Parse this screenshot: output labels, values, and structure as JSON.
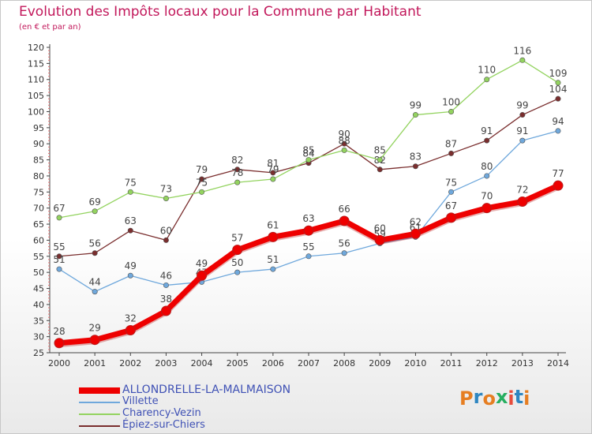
{
  "title": "Evolution des Impôts locaux pour la Commune par Habitant",
  "subtitle": "(en € et par an)",
  "logo": {
    "text": "Proxiti",
    "colors": [
      "#e67e22",
      "#2e86c1",
      "#e67e22",
      "#27ae60",
      "#e74c3c",
      "#2e86c1",
      "#e67e22"
    ]
  },
  "chart_data": {
    "type": "line",
    "x": [
      2000,
      2001,
      2002,
      2003,
      2004,
      2005,
      2006,
      2007,
      2008,
      2009,
      2010,
      2011,
      2012,
      2013,
      2014
    ],
    "ylim": [
      25,
      120
    ],
    "y_tick_step": 5,
    "grid": false,
    "legend_position": "bottom-left",
    "series": [
      {
        "name": "ALLONDRELLE-LA-MALMAISON",
        "color": "#ee0000",
        "values": [
          28,
          29,
          32,
          38,
          49,
          57,
          61,
          63,
          66,
          60,
          62,
          67,
          70,
          72,
          77
        ],
        "labels": [
          "28",
          "29",
          "32",
          "38",
          "49",
          "57",
          "61",
          "63",
          "66",
          "60",
          "62",
          "67",
          "70",
          "72",
          "77"
        ]
      },
      {
        "name": "Villette",
        "color": "#6fa8dc",
        "values": [
          51,
          44,
          49,
          46,
          47,
          50,
          51,
          55,
          56,
          59,
          61,
          75,
          80,
          91,
          94
        ],
        "labels": [
          "51",
          "44",
          "49",
          "46",
          "47",
          "50",
          "51",
          "55",
          "56",
          "59",
          "61",
          "75",
          "80",
          "91",
          "94"
        ]
      },
      {
        "name": "Charency-Vezin",
        "color": "#93d35f",
        "values": [
          67,
          69,
          75,
          73,
          75,
          78,
          79,
          85,
          88,
          85,
          99,
          100,
          110,
          116,
          109
        ],
        "labels": [
          "67",
          "69",
          "75",
          "73",
          "75",
          "78",
          "79",
          "85",
          "88",
          "85",
          "99",
          "100",
          "110",
          "116",
          "109"
        ]
      },
      {
        "name": "Épiez-sur-Chiers",
        "color": "#7a2e2e",
        "values": [
          55,
          56,
          63,
          60,
          79,
          82,
          81,
          84,
          90,
          82,
          83,
          87,
          91,
          99,
          104
        ],
        "labels": [
          "55",
          "56",
          "63",
          "60",
          "79",
          "82",
          "81",
          "84",
          "90",
          "82",
          "83",
          "87",
          "91",
          "99",
          "104"
        ]
      }
    ]
  }
}
